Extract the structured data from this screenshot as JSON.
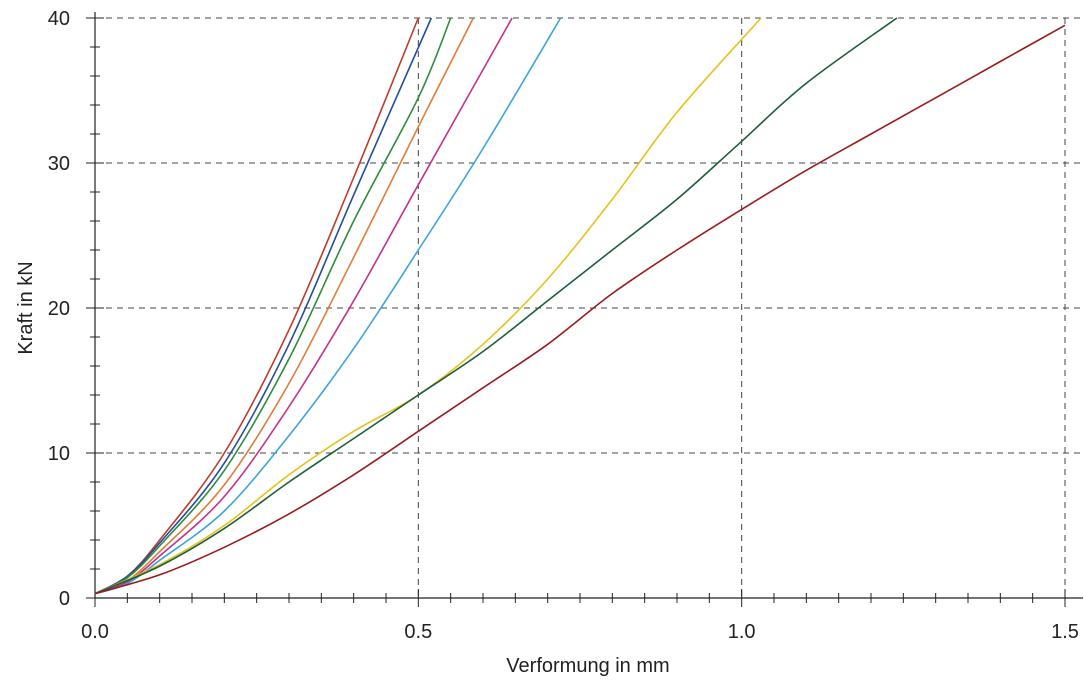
{
  "chart_data": {
    "type": "line",
    "title": "",
    "xlabel": "Verformung in mm",
    "ylabel": "Kraft in kN",
    "xlim": [
      0,
      1.52
    ],
    "ylim": [
      0,
      40
    ],
    "grid": true,
    "x_ticks": [
      {
        "value": 0.0,
        "label": "0.0"
      },
      {
        "value": 0.5,
        "label": "0.5"
      },
      {
        "value": 1.0,
        "label": "1.0"
      },
      {
        "value": 1.5,
        "label": "1.5"
      }
    ],
    "y_ticks": [
      {
        "value": 0,
        "label": "0"
      },
      {
        "value": 10,
        "label": "10"
      },
      {
        "value": 20,
        "label": "20"
      },
      {
        "value": 30,
        "label": "30"
      },
      {
        "value": 40,
        "label": "40"
      }
    ],
    "series": [
      {
        "color": "#c0392b",
        "points": [
          [
            0,
            0.3
          ],
          [
            0.05,
            1.5
          ],
          [
            0.1,
            4
          ],
          [
            0.2,
            10
          ],
          [
            0.3,
            18.5
          ],
          [
            0.4,
            29
          ],
          [
            0.5,
            40
          ]
        ]
      },
      {
        "color": "#1f4e9c",
        "points": [
          [
            0,
            0.3
          ],
          [
            0.05,
            1.5
          ],
          [
            0.1,
            3.8
          ],
          [
            0.2,
            9.3
          ],
          [
            0.3,
            17.5
          ],
          [
            0.4,
            27.8
          ],
          [
            0.52,
            40
          ]
        ]
      },
      {
        "color": "#2e8b3a",
        "points": [
          [
            0,
            0.3
          ],
          [
            0.05,
            1.4
          ],
          [
            0.1,
            3.6
          ],
          [
            0.2,
            8.8
          ],
          [
            0.3,
            16.5
          ],
          [
            0.4,
            26
          ],
          [
            0.5,
            34.5
          ],
          [
            0.55,
            40
          ]
        ]
      },
      {
        "color": "#e07b39",
        "points": [
          [
            0,
            0.3
          ],
          [
            0.05,
            1.2
          ],
          [
            0.1,
            3.2
          ],
          [
            0.2,
            7.8
          ],
          [
            0.3,
            14.8
          ],
          [
            0.4,
            23.5
          ],
          [
            0.5,
            32.5
          ],
          [
            0.585,
            40
          ]
        ]
      },
      {
        "color": "#c2338a",
        "points": [
          [
            0,
            0.3
          ],
          [
            0.05,
            1.1
          ],
          [
            0.1,
            2.9
          ],
          [
            0.2,
            7
          ],
          [
            0.3,
            13.2
          ],
          [
            0.4,
            20.5
          ],
          [
            0.5,
            28.5
          ],
          [
            0.645,
            40
          ]
        ]
      },
      {
        "color": "#3aa5d8",
        "points": [
          [
            0,
            0.3
          ],
          [
            0.05,
            1
          ],
          [
            0.1,
            2.6
          ],
          [
            0.2,
            6
          ],
          [
            0.3,
            11.2
          ],
          [
            0.4,
            17.2
          ],
          [
            0.5,
            24
          ],
          [
            0.6,
            31
          ],
          [
            0.72,
            40
          ]
        ]
      },
      {
        "color": "#e6c21a",
        "points": [
          [
            0,
            0.3
          ],
          [
            0.1,
            2.3
          ],
          [
            0.2,
            5
          ],
          [
            0.3,
            8.5
          ],
          [
            0.4,
            11.5
          ],
          [
            0.5,
            14
          ],
          [
            0.6,
            17.5
          ],
          [
            0.7,
            22
          ],
          [
            0.8,
            27.5
          ],
          [
            0.9,
            33.5
          ],
          [
            1.03,
            40
          ]
        ]
      },
      {
        "color": "#1c5e3c",
        "points": [
          [
            0,
            0.3
          ],
          [
            0.1,
            2.2
          ],
          [
            0.2,
            4.8
          ],
          [
            0.3,
            8
          ],
          [
            0.4,
            11
          ],
          [
            0.5,
            14
          ],
          [
            0.6,
            17
          ],
          [
            0.7,
            20.5
          ],
          [
            0.8,
            24
          ],
          [
            0.9,
            27.5
          ],
          [
            1.0,
            31.5
          ],
          [
            1.1,
            35.5
          ],
          [
            1.24,
            40
          ]
        ]
      },
      {
        "color": "#9b1b1b",
        "points": [
          [
            0,
            0.3
          ],
          [
            0.1,
            1.6
          ],
          [
            0.2,
            3.5
          ],
          [
            0.3,
            5.8
          ],
          [
            0.4,
            8.5
          ],
          [
            0.5,
            11.5
          ],
          [
            0.6,
            14.5
          ],
          [
            0.7,
            17.5
          ],
          [
            0.8,
            21
          ],
          [
            0.9,
            24
          ],
          [
            1.0,
            26.8
          ],
          [
            1.1,
            29.5
          ],
          [
            1.2,
            32
          ],
          [
            1.3,
            34.5
          ],
          [
            1.4,
            37
          ],
          [
            1.5,
            39.5
          ]
        ]
      }
    ]
  }
}
